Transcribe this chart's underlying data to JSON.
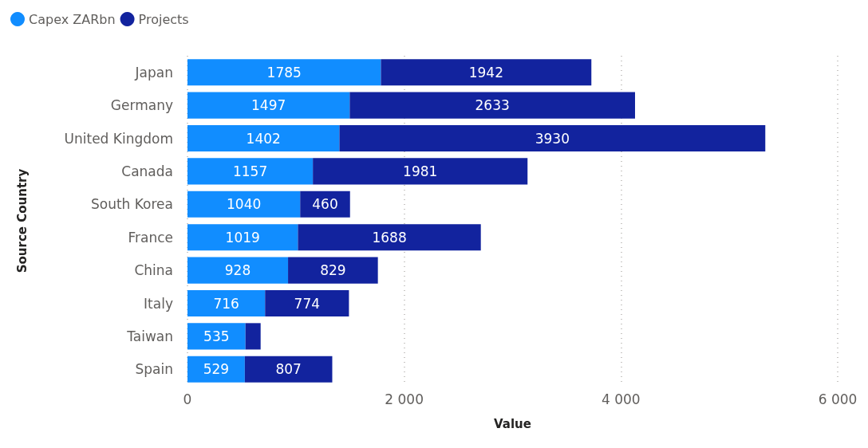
{
  "chart_data": {
    "type": "bar",
    "orientation": "horizontal",
    "stacked": true,
    "xlabel": "Value",
    "ylabel": "Source Country",
    "categories": [
      "Japan",
      "Germany",
      "United Kingdom",
      "Canada",
      "South Korea",
      "France",
      "China",
      "Italy",
      "Taiwan",
      "Spain"
    ],
    "series": [
      {
        "name": "Capex ZARbn",
        "color": "#118dff",
        "values": [
          1785,
          1497,
          1402,
          1157,
          1040,
          1019,
          928,
          716,
          535,
          529
        ],
        "value_labels": [
          "1785",
          "1497",
          "1402",
          "1157",
          "1040",
          "1019",
          "928",
          "716",
          "535",
          "529"
        ]
      },
      {
        "name": "Projects",
        "color": "#12239e",
        "values": [
          1942,
          2633,
          3930,
          1981,
          460,
          1688,
          829,
          774,
          140,
          807
        ],
        "value_labels": [
          "1942",
          "2633",
          "3930",
          "1981",
          "460",
          "1688",
          "829",
          "774",
          null,
          "807"
        ]
      }
    ],
    "xlim": [
      0,
      6000
    ],
    "xticks": [
      0,
      {
        "value": 2000,
        "label": "2 000"
      },
      {
        "value": 4000,
        "label": "4 000"
      },
      {
        "value": 6000,
        "label": "6 000"
      }
    ],
    "grid": "x",
    "legend": "top left"
  }
}
